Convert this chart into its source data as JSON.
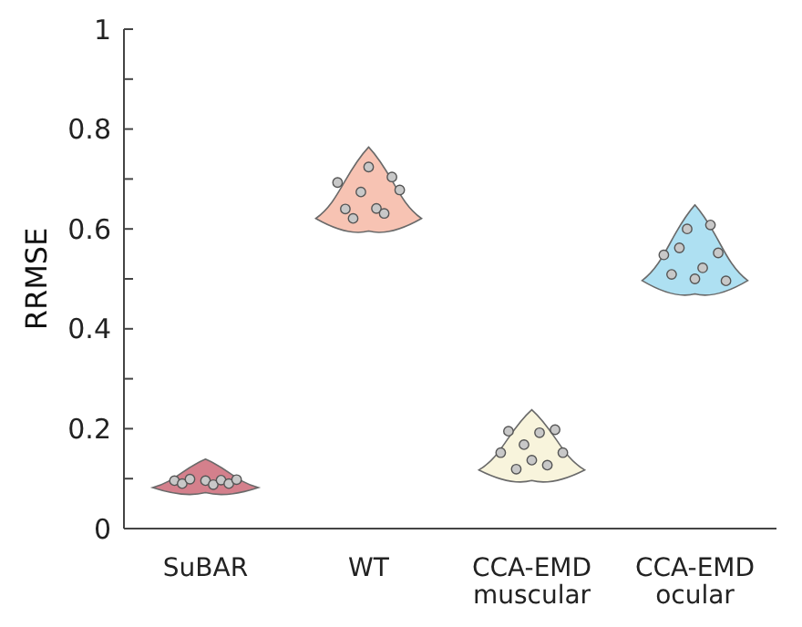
{
  "chart_data": {
    "type": "scatter",
    "ylabel": "RRMSE",
    "categories": [
      null,
      null,
      null,
      null,
      null,
      null,
      null,
      null,
      null,
      null,
      "SuBAR",
      null,
      null,
      null,
      null,
      null,
      null,
      null,
      null,
      null,
      null,
      null,
      null,
      null,
      null,
      null,
      null,
      null,
      null,
      null,
      null,
      "WT",
      null,
      null,
      null,
      null,
      null,
      null,
      null,
      null,
      null,
      null,
      null,
      null,
      null,
      null,
      null,
      null,
      null,
      null,
      null,
      null,
      "CCA-EMD muscular",
      null,
      null,
      null,
      null,
      null,
      null,
      null,
      null,
      null,
      null,
      null,
      null,
      null,
      null,
      null,
      null,
      null,
      null,
      null,
      null,
      "CCA-EMD ocular",
      null,
      null,
      null,
      null,
      null,
      null,
      null,
      null,
      null,
      null
    ],
    "ylim": [
      0,
      1
    ],
    "yticks": [
      0,
      {
        "value": 0.1,
        "label": null
      },
      0.2,
      {
        "value": 0.3,
        "label": null
      },
      0.4,
      {
        "value": 0.5,
        "label": null
      },
      0.6,
      {
        "value": 0.7,
        "label": null
      },
      0.8,
      {
        "value": 0.9,
        "label": null
      },
      1
    ],
    "marker": "circle",
    "grid": false,
    "legend": false,
    "series": [
      {
        "color": "#c8c8c8",
        "values": [
          null,
          null,
          null,
          null,
          null,
          null,
          0.096,
          0.09,
          0.099,
          null,
          0.096,
          0.088,
          0.097,
          0.09,
          0.098,
          null,
          null,
          null,
          null,
          null,
          null,
          null,
          null,
          null,
          null,
          null,
          null,
          null,
          null,
          null,
          null,
          null,
          null,
          null,
          null,
          null,
          null,
          null,
          null,
          null,
          null,
          null,
          null,
          null,
          null,
          null,
          null,
          null,
          null,
          null,
          null,
          null,
          null,
          null,
          null,
          null,
          null,
          null,
          null,
          null,
          null,
          null,
          null,
          null,
          null,
          null,
          null,
          null,
          null,
          null,
          null,
          null,
          null,
          null,
          null,
          null,
          null,
          null,
          null,
          null,
          null,
          null,
          null,
          null
        ]
      },
      {
        "color": "#c8c8c8",
        "values": [
          null,
          null,
          null,
          null,
          null,
          null,
          null,
          null,
          null,
          null,
          null,
          null,
          null,
          null,
          null,
          null,
          null,
          null,
          null,
          null,
          null,
          null,
          null,
          null,
          null,
          null,
          null,
          0.693,
          0.64,
          0.621,
          0.674,
          0.724,
          0.641,
          0.631,
          0.704,
          0.678,
          null,
          null,
          null,
          null,
          null,
          null,
          null,
          null,
          null,
          null,
          null,
          null,
          null,
          null,
          null,
          null,
          null,
          null,
          null,
          null,
          null,
          null,
          null,
          null,
          null,
          null,
          null,
          null,
          null,
          null,
          null,
          null,
          null,
          null,
          null,
          null,
          null,
          null,
          null,
          null,
          null,
          null,
          null,
          null,
          null,
          null,
          null,
          null
        ]
      },
      {
        "color": "#c8c8c8",
        "values": [
          null,
          null,
          null,
          null,
          null,
          null,
          null,
          null,
          null,
          null,
          null,
          null,
          null,
          null,
          null,
          null,
          null,
          null,
          null,
          null,
          null,
          null,
          null,
          null,
          null,
          null,
          null,
          null,
          null,
          null,
          null,
          null,
          null,
          null,
          null,
          null,
          null,
          null,
          null,
          null,
          null,
          null,
          null,
          null,
          null,
          null,
          null,
          null,
          0.152,
          0.195,
          0.119,
          0.168,
          0.137,
          0.192,
          0.127,
          0.198,
          0.152,
          null,
          null,
          null,
          null,
          null,
          null,
          null,
          null,
          null,
          null,
          null,
          null,
          null,
          null,
          null,
          null,
          null,
          null,
          null,
          null,
          null,
          null,
          null,
          null,
          null,
          null,
          null
        ]
      },
      {
        "color": "#c8c8c8",
        "values": [
          null,
          null,
          null,
          null,
          null,
          null,
          null,
          null,
          null,
          null,
          null,
          null,
          null,
          null,
          null,
          null,
          null,
          null,
          null,
          null,
          null,
          null,
          null,
          null,
          null,
          null,
          null,
          null,
          null,
          null,
          null,
          null,
          null,
          null,
          null,
          null,
          null,
          null,
          null,
          null,
          null,
          null,
          null,
          null,
          null,
          null,
          null,
          null,
          null,
          null,
          null,
          null,
          null,
          null,
          null,
          null,
          null,
          null,
          null,
          null,
          null,
          null,
          null,
          null,
          null,
          null,
          null,
          null,
          null,
          0.548,
          0.509,
          0.562,
          0.6,
          0.5,
          0.522,
          0.608,
          0.552,
          0.496,
          null,
          null,
          null,
          null,
          null,
          null
        ]
      }
    ]
  }
}
